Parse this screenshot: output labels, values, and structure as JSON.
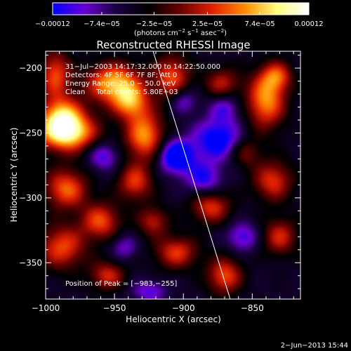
{
  "chart_data": {
    "type": "heatmap",
    "title": "Reconstructed RHESSI Image",
    "xlabel": "Heliocentric X (arcsec)",
    "ylabel": "Heliocentric Y (arcsec)",
    "xlim": [
      -1000,
      -815
    ],
    "ylim": [
      -378,
      -187
    ],
    "x_ticks": [
      {
        "value": -1000,
        "label": "−1000"
      },
      {
        "value": -950,
        "label": "−950"
      },
      {
        "value": -900,
        "label": "−900"
      },
      {
        "value": -850,
        "label": "−850"
      }
    ],
    "y_ticks": [
      {
        "value": -200,
        "label": "−200"
      },
      {
        "value": -250,
        "label": "−250"
      },
      {
        "value": -300,
        "label": "−300"
      },
      {
        "value": -350,
        "label": "−350"
      }
    ],
    "colorbar": {
      "range": [
        -0.00012,
        0.00012
      ],
      "tick_values": [
        -0.00012,
        -7.4e-05,
        -2.5e-05,
        2.5e-05,
        7.4e-05,
        0.00012
      ],
      "tick_labels": [
        "−0.00012",
        "−7.4e−05",
        "−2.5e−05",
        "2.5e−05",
        "7.4e−05",
        "0.00012"
      ],
      "unit_label": "(photons cm",
      "unit_exp1": "−2",
      "unit_mid": " s",
      "unit_exp2": "−1",
      "unit_mid2": " asec",
      "unit_exp3": "−2",
      "unit_end": ")",
      "colors": [
        "#0000ff",
        "#6a00d0",
        "#1a0040",
        "#000000",
        "#6a0000",
        "#e02000",
        "#ff8c00",
        "#ffff80",
        "#ffffff"
      ]
    },
    "annotations": [
      "31−Jul−2003 14:17:32.000 to 14:22:50.000",
      "Detectors: 4F 5F 6F 7F 8F; Att 0",
      "Energy Range: 25.0 − 50.0 keV",
      "Clean     Total counts: 5.80E+03"
    ],
    "peak_label": "Position of Peak = [−983,−255]",
    "peak": [
      -983,
      -255
    ],
    "limb_line": [
      [
        -922,
        -187
      ],
      [
        -866,
        -378
      ]
    ],
    "sources": [
      {
        "x": -985,
        "y": -250,
        "sx": 15,
        "sy": 10,
        "a": 1.0
      },
      {
        "x": -988,
        "y": -236,
        "sx": 11,
        "sy": 10,
        "a": 0.7
      },
      {
        "x": -950,
        "y": -212,
        "sx": 14,
        "sy": 11,
        "a": 0.85
      },
      {
        "x": -928,
        "y": -252,
        "sx": 10,
        "sy": 13,
        "a": 0.75
      },
      {
        "x": -938,
        "y": -227,
        "sx": 9,
        "sy": 9,
        "a": 0.6
      },
      {
        "x": -908,
        "y": -207,
        "sx": 9,
        "sy": 12,
        "a": 0.6
      },
      {
        "x": -840,
        "y": -225,
        "sx": 10,
        "sy": 15,
        "a": 0.75
      },
      {
        "x": -832,
        "y": -206,
        "sx": 8,
        "sy": 8,
        "a": 0.5
      },
      {
        "x": -993,
        "y": -205,
        "sx": 8,
        "sy": 13,
        "a": 0.6
      },
      {
        "x": -985,
        "y": -293,
        "sx": 11,
        "sy": 11,
        "a": 0.65
      },
      {
        "x": -960,
        "y": -318,
        "sx": 10,
        "sy": 10,
        "a": 0.6
      },
      {
        "x": -935,
        "y": -288,
        "sx": 9,
        "sy": 10,
        "a": 0.55
      },
      {
        "x": -988,
        "y": -338,
        "sx": 12,
        "sy": 12,
        "a": 0.6
      },
      {
        "x": -955,
        "y": -360,
        "sx": 9,
        "sy": 8,
        "a": 0.5
      },
      {
        "x": -905,
        "y": -342,
        "sx": 11,
        "sy": 9,
        "a": 0.55
      },
      {
        "x": -880,
        "y": -307,
        "sx": 10,
        "sy": 9,
        "a": 0.55
      },
      {
        "x": -870,
        "y": -360,
        "sx": 9,
        "sy": 10,
        "a": 0.6
      },
      {
        "x": -835,
        "y": -287,
        "sx": 10,
        "sy": 11,
        "a": 0.55
      },
      {
        "x": -830,
        "y": -330,
        "sx": 9,
        "sy": 10,
        "a": 0.5
      },
      {
        "x": -922,
        "y": -318,
        "sx": 8,
        "sy": 8,
        "a": 0.45
      },
      {
        "x": -872,
        "y": -212,
        "sx": 9,
        "sy": 9,
        "a": 0.45
      },
      {
        "x": -855,
        "y": -265,
        "sx": 8,
        "sy": 8,
        "a": 0.35
      },
      {
        "x": -905,
        "y": -268,
        "sx": 9,
        "sy": 9,
        "a": -0.75
      },
      {
        "x": -875,
        "y": -255,
        "sx": 12,
        "sy": 11,
        "a": -0.6
      },
      {
        "x": -885,
        "y": -285,
        "sx": 9,
        "sy": 9,
        "a": -0.45
      },
      {
        "x": -857,
        "y": -330,
        "sx": 8,
        "sy": 8,
        "a": -0.4
      },
      {
        "x": -958,
        "y": -268,
        "sx": 8,
        "sy": 8,
        "a": -0.4
      },
      {
        "x": -900,
        "y": -225,
        "sx": 7,
        "sy": 7,
        "a": -0.35
      },
      {
        "x": -925,
        "y": -372,
        "sx": 9,
        "sy": 6,
        "a": -0.35
      },
      {
        "x": -870,
        "y": -230,
        "sx": 8,
        "sy": 8,
        "a": -0.35
      },
      {
        "x": -943,
        "y": -338,
        "sx": 7,
        "sy": 7,
        "a": -0.3
      }
    ]
  },
  "footer": {
    "timestamp": "2−Jun−2013 15:44"
  }
}
